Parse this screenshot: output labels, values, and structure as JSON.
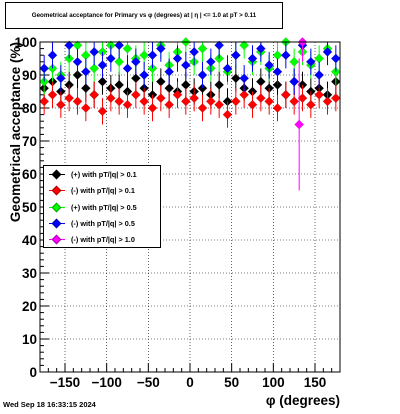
{
  "title": "Geometrical acceptance for Primary vs φ (degrees) at |  η | <= 1.0 at pT > 0.11",
  "footer": "Wed Sep 18 16:33:15 2024",
  "chart_data": {
    "type": "scatter",
    "xlabel": "φ (degrees)",
    "ylabel": "Geometrical acceptance (%)",
    "xlim": [
      -180,
      180
    ],
    "ylim": [
      0,
      100
    ],
    "x_ticks": [
      -150,
      -100,
      -50,
      0,
      50,
      100,
      150
    ],
    "x_tick_labels": [
      "−150",
      "−100",
      "−50",
      "0",
      "50",
      "100",
      "150"
    ],
    "y_ticks": [
      0,
      10,
      20,
      30,
      40,
      50,
      60,
      70,
      80,
      90,
      100
    ],
    "y_tick_labels": [
      "0",
      "10",
      "20",
      "30",
      "40",
      "50",
      "60",
      "70",
      "80",
      "90",
      "100"
    ],
    "grid": true,
    "legend_position": "left",
    "series": [
      {
        "name": "(+) with pT/|q| > 0.1",
        "color": "#000000",
        "marker": "diamond",
        "x": [
          -175,
          -165,
          -155,
          -145,
          -135,
          -125,
          -115,
          -105,
          -95,
          -85,
          -75,
          -65,
          -55,
          -45,
          -35,
          -25,
          -15,
          -5,
          5,
          15,
          25,
          35,
          45,
          55,
          65,
          75,
          85,
          95,
          105,
          115,
          125,
          135,
          145,
          155,
          165,
          175
        ],
        "y": [
          86,
          88,
          85,
          87,
          90,
          86,
          84,
          88,
          86,
          87,
          85,
          89,
          86,
          84,
          88,
          86,
          85,
          87,
          85,
          86,
          84,
          87,
          82,
          89,
          86,
          85,
          88,
          86,
          87,
          84,
          88,
          87,
          85,
          86,
          84,
          88
        ]
      },
      {
        "name": "(-) with pT/|q| > 0.1",
        "color": "#ff0000",
        "marker": "diamond",
        "x": [
          -175,
          -165,
          -155,
          -145,
          -135,
          -125,
          -115,
          -105,
          -95,
          -85,
          -75,
          -65,
          -55,
          -45,
          -35,
          -25,
          -15,
          -5,
          5,
          15,
          25,
          35,
          45,
          55,
          65,
          75,
          85,
          95,
          105,
          115,
          125,
          135,
          145,
          155,
          165,
          175
        ],
        "y": [
          82,
          84,
          81,
          83,
          82,
          80,
          84,
          79,
          83,
          82,
          81,
          84,
          82,
          80,
          83,
          81,
          84,
          82,
          83,
          80,
          82,
          81,
          78,
          82,
          84,
          81,
          83,
          82,
          80,
          84,
          82,
          83,
          81,
          84,
          82,
          83
        ]
      },
      {
        "name": "(+) with pT/|q| > 0.5",
        "color": "#00ff00",
        "marker": "diamond",
        "x": [
          -175,
          -165,
          -155,
          -145,
          -135,
          -125,
          -115,
          -105,
          -95,
          -85,
          -75,
          -65,
          -55,
          -45,
          -35,
          -25,
          -15,
          -5,
          5,
          15,
          25,
          35,
          45,
          55,
          65,
          75,
          85,
          95,
          105,
          115,
          125,
          135,
          145,
          155,
          165,
          175
        ],
        "y": [
          88,
          92,
          90,
          95,
          99,
          96,
          92,
          97,
          99,
          94,
          98,
          95,
          96,
          92,
          99,
          93,
          97,
          100,
          94,
          98,
          92,
          95,
          91,
          96,
          99,
          94,
          97,
          92,
          96,
          100,
          94,
          97,
          93,
          95,
          98,
          91
        ]
      },
      {
        "name": "(-) with pT/|q| > 0.5",
        "color": "#0000ff",
        "marker": "diamond",
        "x": [
          -175,
          -165,
          -155,
          -145,
          -135,
          -125,
          -115,
          -105,
          -95,
          -85,
          -75,
          -65,
          -55,
          -45,
          -35,
          -25,
          -15,
          -5,
          5,
          15,
          25,
          35,
          45,
          55,
          65,
          75,
          85,
          95,
          105,
          115,
          125,
          135,
          145,
          155,
          165,
          175
        ],
        "y": [
          92,
          96,
          89,
          99,
          94,
          91,
          97,
          93,
          95,
          99,
          92,
          94,
          90,
          96,
          98,
          91,
          95,
          93,
          97,
          90,
          94,
          99,
          92,
          96,
          89,
          95,
          98,
          93,
          91,
          96,
          88,
          99,
          94,
          90,
          97,
          95
        ]
      },
      {
        "name": "(-) with pT/|q| > 1.0",
        "color": "#ff00ff",
        "marker": "diamond",
        "x": [
          131,
          135
        ],
        "y": [
          75,
          100
        ]
      }
    ]
  }
}
